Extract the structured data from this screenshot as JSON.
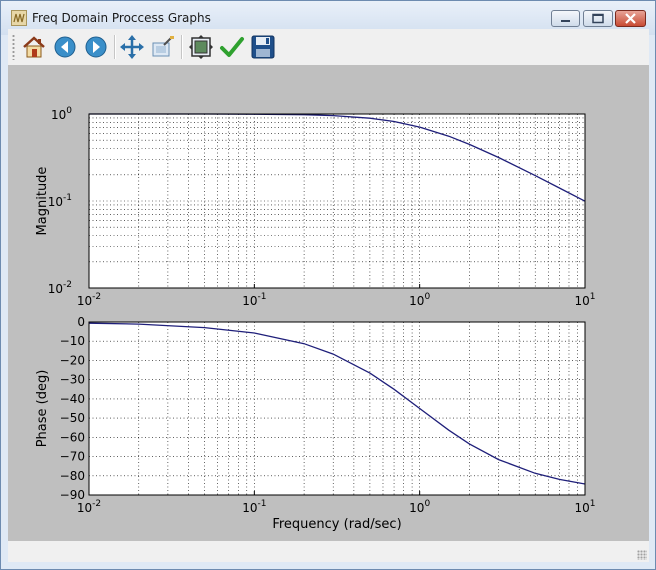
{
  "window": {
    "title": "Freq Domain Proccess Graphs",
    "icon": "wave-icon"
  },
  "toolbar": {
    "buttons": [
      {
        "name": "home-button",
        "icon": "home-icon"
      },
      {
        "name": "back-button",
        "icon": "back-arrow-icon"
      },
      {
        "name": "forward-button",
        "icon": "forward-arrow-icon"
      },
      {
        "name": "pan-button",
        "icon": "pan-arrows-icon"
      },
      {
        "name": "zoom-button",
        "icon": "zoom-rect-icon"
      },
      {
        "name": "configure-subplots-button",
        "icon": "subplots-icon"
      },
      {
        "name": "edit-parameters-button",
        "icon": "checkmark-icon"
      },
      {
        "name": "save-button",
        "icon": "floppy-disk-icon"
      }
    ]
  },
  "colors": {
    "line": "#1f1f7a",
    "canvas_bg": "#bfbfbf",
    "axes_bg": "#ffffff"
  },
  "chart_data": [
    {
      "type": "line",
      "xscale": "log",
      "yscale": "log",
      "xlim": [
        0.01,
        10
      ],
      "ylim": [
        0.01,
        1
      ],
      "ylabel": "Magnitude",
      "xlabel": "",
      "grid": true,
      "x_ticks": [
        {
          "base": "10",
          "exp": "-2"
        },
        {
          "base": "10",
          "exp": "-1"
        },
        {
          "base": "10",
          "exp": "0"
        },
        {
          "base": "10",
          "exp": "1"
        }
      ],
      "y_ticks": [
        {
          "base": "10",
          "exp": "-2"
        },
        {
          "base": "10",
          "exp": "-1"
        },
        {
          "base": "10",
          "exp": "0"
        }
      ],
      "series": [
        {
          "x": [
            0.01,
            0.02,
            0.05,
            0.1,
            0.2,
            0.3,
            0.5,
            0.7,
            1,
            1.5,
            2,
            3,
            5,
            7,
            10
          ],
          "y": [
            1.0,
            1.0,
            0.999,
            0.995,
            0.981,
            0.958,
            0.894,
            0.819,
            0.707,
            0.555,
            0.447,
            0.316,
            0.196,
            0.141,
            0.0995
          ]
        }
      ]
    },
    {
      "type": "line",
      "xscale": "log",
      "yscale": "linear",
      "xlim": [
        0.01,
        10
      ],
      "ylim": [
        -90,
        0
      ],
      "ylabel": "Phase (deg)",
      "xlabel": "Frequency (rad/sec)",
      "grid": true,
      "x_ticks": [
        {
          "base": "10",
          "exp": "-2"
        },
        {
          "base": "10",
          "exp": "-1"
        },
        {
          "base": "10",
          "exp": "0"
        },
        {
          "base": "10",
          "exp": "1"
        }
      ],
      "y_ticks": [
        "0",
        "−10",
        "−20",
        "−30",
        "−40",
        "−50",
        "−60",
        "−70",
        "−80",
        "−90"
      ],
      "series": [
        {
          "x": [
            0.01,
            0.02,
            0.05,
            0.1,
            0.2,
            0.3,
            0.5,
            0.7,
            1,
            1.5,
            2,
            3,
            5,
            7,
            10
          ],
          "y": [
            -0.6,
            -1.1,
            -2.9,
            -5.7,
            -11.3,
            -16.7,
            -26.6,
            -35.0,
            -45.0,
            -56.3,
            -63.4,
            -71.6,
            -78.7,
            -81.9,
            -84.3
          ]
        }
      ]
    }
  ]
}
